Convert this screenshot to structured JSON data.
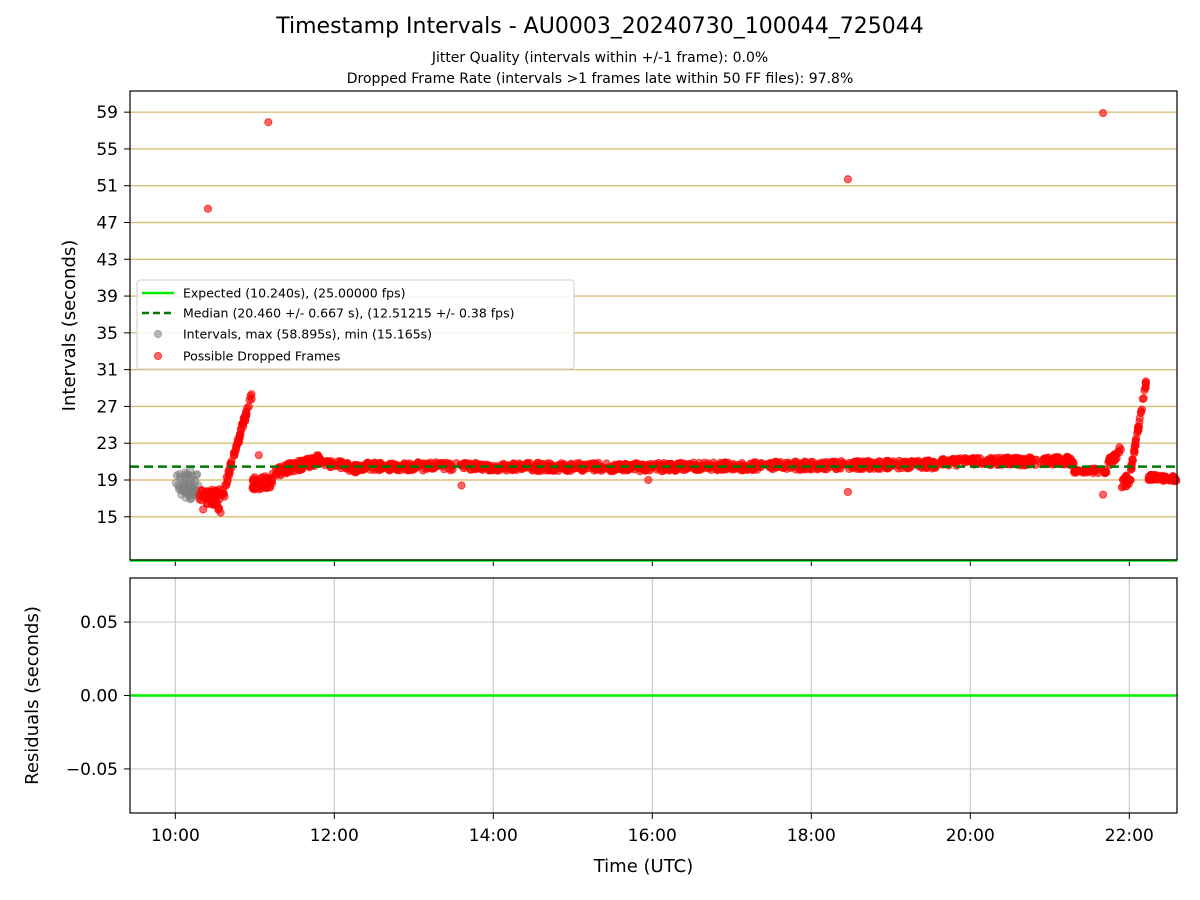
{
  "chart_data": [
    {
      "type": "scatter",
      "title": "Timestamp Intervals - AU0003_20240730_100044_725044",
      "subtitles": [
        "Jitter Quality (intervals within +/-1 frame): 0.0%",
        "Dropped Frame Rate (intervals >1 frames late within 50 FF files): 97.8%"
      ],
      "xlabel": "",
      "ylabel": "Intervals (seconds)",
      "x_unit": "hours (UTC)",
      "xlim": [
        9.43,
        22.6
      ],
      "ylim": [
        10.3,
        61.3
      ],
      "x_ticks": [
        10,
        12,
        14,
        16,
        18,
        20,
        22
      ],
      "y_ticks": [
        15,
        19,
        23,
        27,
        31,
        35,
        39,
        43,
        47,
        51,
        55,
        59
      ],
      "y_tick_labels": [
        "15",
        "19",
        "23",
        "27",
        "31",
        "35",
        "39",
        "43",
        "47",
        "51",
        "55",
        "59"
      ],
      "grid": "horizontal gold lines at y ticks; vertical lines hidden",
      "legend_position": "center-left",
      "colors": {
        "expected": "#00ee00",
        "median": "#007700",
        "intervals": "#808080",
        "dropped": "#ff0000",
        "grid": "#d8bf7a"
      },
      "series": [
        {
          "name": "Expected (10.240s), (25.00000 fps)",
          "kind": "hline",
          "y": 10.24
        },
        {
          "name": "Median (20.460 +/- 0.667 s), (12.51215 +/- 0.38 fps)",
          "kind": "dashed-hline",
          "y": 20.46
        },
        {
          "name": "Intervals, max (58.895s), min (15.165s)",
          "kind": "scatter",
          "points": [
            [
              10.02,
              19.5
            ],
            [
              10.05,
              18.2
            ],
            [
              10.07,
              19.1
            ],
            [
              10.09,
              17.9
            ],
            [
              10.11,
              18.8
            ],
            [
              10.13,
              19.4
            ],
            [
              10.15,
              17.5
            ],
            [
              10.17,
              18.6
            ],
            [
              10.19,
              16.9
            ],
            [
              10.21,
              18.1
            ],
            [
              10.23,
              17.4
            ],
            [
              10.25,
              18.9
            ],
            [
              10.27,
              17.8
            ],
            [
              10.3,
              17.2
            ]
          ]
        },
        {
          "name": "Possible Dropped Frames",
          "kind": "scatter",
          "segments": [
            {
              "x0": 10.3,
              "x1": 10.62,
              "y0": 17.2,
              "y1": 17.2,
              "spread": 1.6,
              "count": 40
            },
            {
              "x0": 10.45,
              "x1": 10.58,
              "y0": 16.8,
              "y1": 15.5,
              "spread": 0.8,
              "count": 14
            },
            {
              "x0": 10.58,
              "x1": 10.97,
              "y0": 17.0,
              "y1": 28.5,
              "spread": 0.9,
              "count": 60
            },
            {
              "x0": 10.97,
              "x1": 11.22,
              "y0": 18.6,
              "y1": 18.8,
              "spread": 1.4,
              "count": 45
            },
            {
              "x0": 11.22,
              "x1": 11.85,
              "y0": 19.8,
              "y1": 21.3,
              "spread": 1.1,
              "count": 90
            },
            {
              "x0": 11.85,
              "x1": 12.3,
              "y0": 21.0,
              "y1": 20.2,
              "spread": 0.9,
              "count": 60
            },
            {
              "x0": 12.3,
              "x1": 15.9,
              "y0": 20.5,
              "y1": 20.4,
              "spread": 0.9,
              "count": 420
            },
            {
              "x0": 15.9,
              "x1": 19.6,
              "y0": 20.4,
              "y1": 20.7,
              "spread": 0.9,
              "count": 420
            },
            {
              "x0": 19.6,
              "x1": 21.3,
              "y0": 20.9,
              "y1": 21.1,
              "spread": 0.9,
              "count": 220
            },
            {
              "x0": 21.3,
              "x1": 21.72,
              "y0": 20.0,
              "y1": 20.0,
              "spread": 0.5,
              "count": 40
            },
            {
              "x0": 21.72,
              "x1": 21.9,
              "y0": 20.6,
              "y1": 22.4,
              "spread": 1.0,
              "count": 22
            },
            {
              "x0": 21.88,
              "x1": 22.02,
              "y0": 18.5,
              "y1": 19.2,
              "spread": 1.2,
              "count": 20
            },
            {
              "x0": 22.02,
              "x1": 22.22,
              "y0": 20.0,
              "y1": 30.0,
              "spread": 0.7,
              "count": 40
            },
            {
              "x0": 22.22,
              "x1": 22.6,
              "y0": 19.3,
              "y1": 19.1,
              "spread": 0.6,
              "count": 60
            }
          ],
          "outliers": [
            [
              10.41,
              48.5
            ],
            [
              11.17,
              57.9
            ],
            [
              18.46,
              51.7
            ],
            [
              21.67,
              58.9
            ],
            [
              18.46,
              17.7
            ],
            [
              13.6,
              18.4
            ],
            [
              15.95,
              19.0
            ],
            [
              21.67,
              17.4
            ],
            [
              11.05,
              21.7
            ],
            [
              10.35,
              15.8
            ]
          ]
        }
      ]
    },
    {
      "type": "line",
      "xlabel": "Time (UTC)",
      "ylabel": "Residuals (seconds)",
      "x_unit": "hours (UTC)",
      "xlim": [
        9.43,
        22.6
      ],
      "ylim": [
        -0.08,
        0.08
      ],
      "x_ticks": [
        10,
        12,
        14,
        16,
        18,
        20,
        22
      ],
      "x_tick_labels": [
        "10:00",
        "12:00",
        "14:00",
        "16:00",
        "18:00",
        "20:00",
        "22:00"
      ],
      "y_ticks": [
        0.05,
        0.0,
        -0.05
      ],
      "y_tick_labels": [
        "0.05",
        "0.00",
        "−0.05"
      ],
      "grid": "on",
      "colors": {
        "residual": "#00ee00",
        "grid": "#cccccc"
      },
      "series": [
        {
          "kind": "hline",
          "y": 0.0
        }
      ]
    }
  ]
}
